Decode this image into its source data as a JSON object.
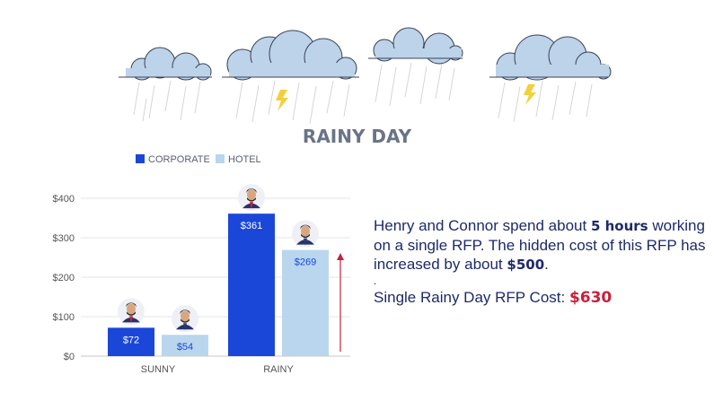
{
  "heading": "RAINY DAY",
  "description": {
    "part1": "Henry and Connor spend about ",
    "hours": "5 hours",
    "part2": " working on a single RFP.  The hidden cost of this RFP has increased by about ",
    "increase": "$500",
    "part3": ".",
    "dot": ".",
    "cost_label": "Single Rainy Day RFP Cost: ",
    "cost_value": "$630"
  },
  "icons": {
    "cloud": "cloud-icon",
    "rain": "rain-streaks",
    "lightning": "lightning-bolt-icon",
    "person": "person-avatar-icon",
    "arrow": "increase-arrow-icon"
  },
  "colors": {
    "corporate": "#1a47d8",
    "hotel": "#b9d6ee",
    "cloud": "#bcd3ea",
    "lightning": "#f3cf3b",
    "arrow": "#c8203a",
    "text": "#1d2a6b"
  },
  "chart_data": {
    "type": "bar",
    "categories": [
      "SUNNY",
      "RAINY"
    ],
    "series": [
      {
        "name": "CORPORATE",
        "values": [
          72,
          361
        ],
        "labels": [
          "$72",
          "$361"
        ]
      },
      {
        "name": "HOTEL",
        "values": [
          54,
          269
        ],
        "labels": [
          "$54",
          "$269"
        ]
      }
    ],
    "ylim": [
      0,
      400
    ],
    "yticks": [
      0,
      100,
      200,
      300,
      400
    ],
    "ytick_labels": [
      "$0",
      "$100",
      "$200",
      "$300",
      "$400"
    ],
    "legend": "top-left",
    "grid": true
  }
}
